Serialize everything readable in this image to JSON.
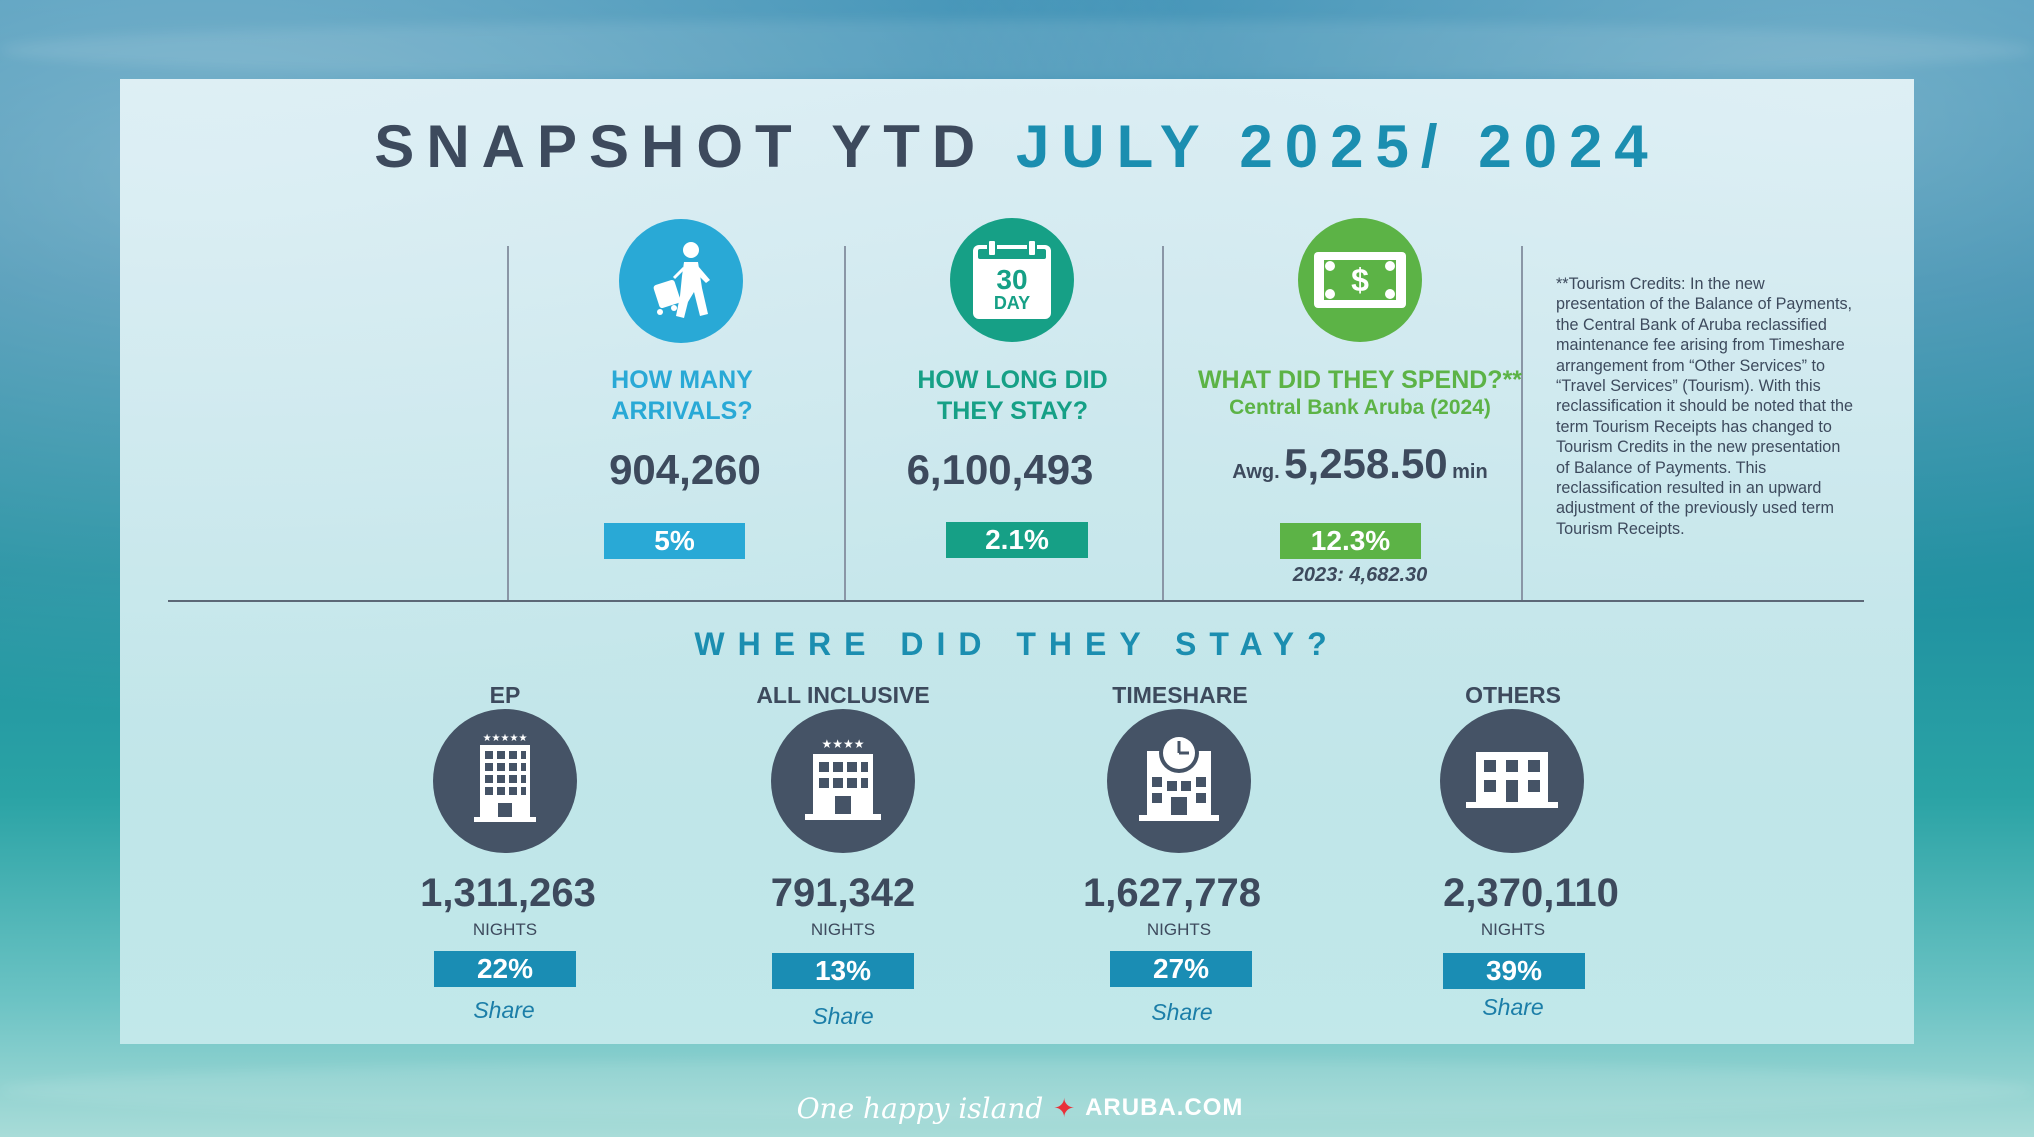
{
  "title": {
    "part1": "SNAPSHOT YTD",
    "part2": "JULY 2025/ 2024"
  },
  "arrivals": {
    "heading": "HOW MANY ARRIVALS?",
    "value": "904,260",
    "change": "5%",
    "color": "#29a9d6",
    "icon": "walking-traveler-icon"
  },
  "stay": {
    "heading": "HOW LONG DID THEY STAY?",
    "value": "6,100,493",
    "change": "2.1%",
    "color": "#16a086",
    "icon_line1": "30",
    "icon_line2": "DAY",
    "icon": "calendar-30-day-icon"
  },
  "spend": {
    "heading": "WHAT DID THEY SPEND?**",
    "subheading": "Central Bank Aruba (2024)",
    "prefix": "Awg.",
    "value": "5,258.50",
    "suffix": "min",
    "change": "12.3%",
    "previous": "2023: 4,682.30",
    "color": "#5cb346",
    "icon": "dollar-bill-icon"
  },
  "note": "**Tourism Credits: In the new presentation of the Balance of Payments, the Central Bank of Aruba reclassified maintenance fee arising from Timeshare arrangement from “Other Services” to “Travel Services” (Tourism). With this reclassification it should be noted that the term Tourism Receipts has changed to Tourism Credits in the new presentation of Balance of Payments. This reclassification resulted in an upward adjustment of the previously used term Tourism Receipts.",
  "where": {
    "heading": "WHERE DID THEY STAY?",
    "nights_label": "NIGHTS",
    "share_label": "Share",
    "items": [
      {
        "label": "EP",
        "nights": "1,311,263",
        "share": "22%",
        "icon": "hotel-five-star-icon"
      },
      {
        "label": "ALL INCLUSIVE",
        "nights": "791,342",
        "share": "13%",
        "icon": "hotel-four-star-icon"
      },
      {
        "label": "TIMESHARE",
        "nights": "1,627,778",
        "share": "27%",
        "icon": "timeshare-clock-building-icon"
      },
      {
        "label": "OTHERS",
        "nights": "2,370,110",
        "share": "39%",
        "icon": "building-icon"
      }
    ]
  },
  "footer": {
    "tagline": "One happy island",
    "site": "ARUBA.COM"
  },
  "colors": {
    "dark": "#3d4a5d",
    "accent_blue": "#1b8eb0",
    "share_badge": "#1a8db4",
    "building_circle": "#455366"
  }
}
